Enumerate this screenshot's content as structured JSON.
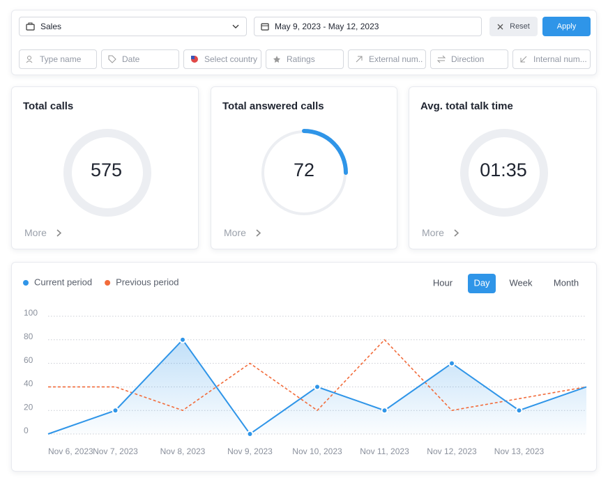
{
  "filters": {
    "team": "Sales",
    "date_range": "May 9, 2023 - May 12, 2023",
    "reset": "Reset",
    "apply": "Apply",
    "fields": [
      "Type name",
      "Date",
      "Select country",
      "Ratings",
      "External num..",
      "Direction",
      "Internal num..."
    ]
  },
  "cards": [
    {
      "title": "Total calls",
      "value": 575,
      "more": "More"
    },
    {
      "title": "Total answered calls",
      "value": 72,
      "more": "More"
    },
    {
      "title": "Avg. total talk time",
      "value": "01:35",
      "more": "More"
    }
  ],
  "chart_data": {
    "type": "line",
    "categories": [
      "Nov 6, 2023",
      "Nov 7, 2023",
      "Nov 8, 2023",
      "Nov 9, 2023",
      "Nov 10, 2023",
      "Nov 11, 2023",
      "Nov 12, 2023",
      "Nov 13, 2023",
      null
    ],
    "series": [
      {
        "name": "Current period",
        "color": "#2f95e8",
        "values": [
          0,
          20,
          80,
          0,
          40,
          20,
          60,
          20,
          40
        ]
      },
      {
        "name": "Previous period",
        "color": "#f26b3a",
        "values": [
          40,
          40,
          20,
          60,
          20,
          80,
          20,
          30,
          40
        ]
      }
    ],
    "ylim": [
      0,
      100
    ],
    "yticks": [
      0,
      20,
      40,
      60,
      80,
      100
    ],
    "grid": true,
    "periods": [
      "Hour",
      "Day",
      "Week",
      "Month"
    ],
    "active_period": "Day"
  }
}
